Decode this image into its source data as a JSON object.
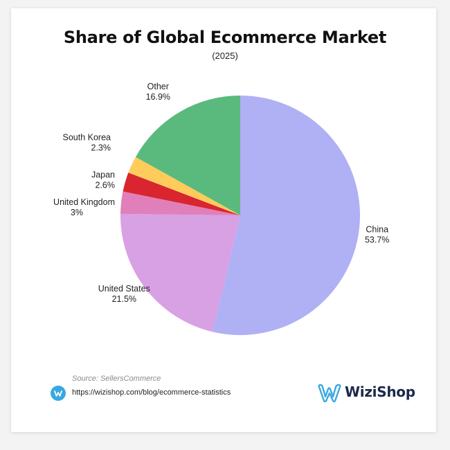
{
  "header": {
    "title": "Share of Global Ecommerce Market",
    "subtitle": "(2025)"
  },
  "chart_data": {
    "type": "pie",
    "title": "Share of Global Ecommerce Market",
    "subtitle": "(2025)",
    "start_angle_deg": 0,
    "direction": "clockwise",
    "slices": [
      {
        "label": "China",
        "value": 53.7,
        "value_label": "53.7%",
        "color": "#b0b0f5"
      },
      {
        "label": "United States",
        "value": 21.5,
        "value_label": "21.5%",
        "color": "#d7a1e3"
      },
      {
        "label": "United Kingdom",
        "value": 3,
        "value_label": "3%",
        "color": "#e07fb9"
      },
      {
        "label": "Japan",
        "value": 2.6,
        "value_label": "2.6%",
        "color": "#d8252f"
      },
      {
        "label": "South Korea",
        "value": 2.3,
        "value_label": "2.3%",
        "color": "#ffcc5c"
      },
      {
        "label": "Other",
        "value": 16.9,
        "value_label": "16.9%",
        "color": "#5aba7d"
      }
    ]
  },
  "footer": {
    "source": "Source: SellersCommerce",
    "url": "https://wizishop.com/blog/ecommerce-statistics",
    "url_icon": "wizishop-circle-icon",
    "brand": "WiziShop",
    "brand_color": "#1b2a4a",
    "accent_color": "#3aa8e0"
  }
}
